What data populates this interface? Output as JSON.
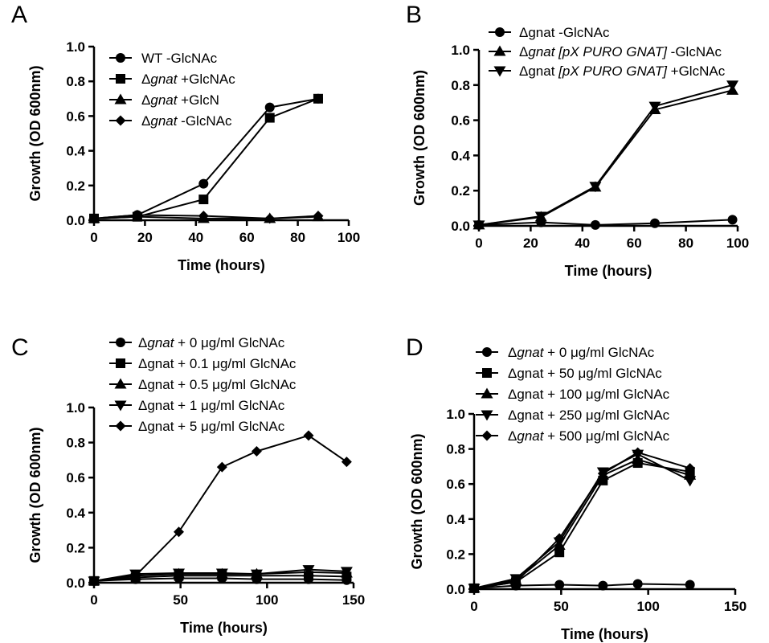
{
  "chart_data": [
    {
      "type": "line",
      "panel_label": "A",
      "xlabel": "Time (hours)",
      "ylabel": "Growth (OD 600nm)",
      "xlim": [
        0,
        100
      ],
      "ylim": [
        0,
        1.0
      ],
      "xticks": [
        "0",
        "20",
        "40",
        "60",
        "80",
        "100"
      ],
      "yticks": [
        "0.0",
        "0.2",
        "0.4",
        "0.6",
        "0.8",
        "1.0"
      ],
      "grid": false,
      "legend_position": "top-center",
      "series": [
        {
          "name": "WT -GlcNAc",
          "legend_parts": [
            {
              "t": "WT -GlcNAc",
              "i": false
            }
          ],
          "marker": "circle",
          "x": [
            0,
            17,
            43,
            69,
            88
          ],
          "values": [
            0.01,
            0.03,
            0.21,
            0.65,
            0.7
          ]
        },
        {
          "name": "Δgnat +GlcNAc",
          "legend_parts": [
            {
              "t": "Δ",
              "i": false
            },
            {
              "t": "gnat",
              "i": true
            },
            {
              "t": " +GlcNAc",
              "i": false
            }
          ],
          "marker": "square",
          "x": [
            0,
            17,
            43,
            69,
            88
          ],
          "values": [
            0.01,
            0.02,
            0.12,
            0.59,
            0.7
          ]
        },
        {
          "name": "Δgnat +GlcN",
          "legend_parts": [
            {
              "t": "Δ",
              "i": false
            },
            {
              "t": "gnat",
              "i": true
            },
            {
              "t": " +GlcN",
              "i": false
            }
          ],
          "marker": "triangle-up",
          "x": [
            0,
            17,
            43,
            69,
            88
          ],
          "values": [
            0.01,
            0.02,
            0.01,
            0.01,
            0.02
          ]
        },
        {
          "name": "Δgnat -GlcNAc",
          "legend_parts": [
            {
              "t": "Δ",
              "i": false
            },
            {
              "t": "gnat",
              "i": true
            },
            {
              "t": " -GlcNAc",
              "i": false
            }
          ],
          "marker": "diamond",
          "x": [
            0,
            17,
            43,
            69,
            88
          ],
          "values": [
            0.01,
            0.03,
            0.025,
            0.01,
            0.025
          ]
        }
      ]
    },
    {
      "type": "line",
      "panel_label": "B",
      "xlabel": "Time (hours)",
      "ylabel": "Growth (OD 600nm)",
      "xlim": [
        0,
        100
      ],
      "ylim": [
        0,
        1.0
      ],
      "xticks": [
        "0",
        "20",
        "40",
        "60",
        "80",
        "100"
      ],
      "yticks": [
        "0.0",
        "0.2",
        "0.4",
        "0.6",
        "0.8",
        "1.0"
      ],
      "grid": false,
      "legend_position": "top-center",
      "series": [
        {
          "name": "Δgnat -GlcNAc",
          "legend_parts": [
            {
              "t": "Δgnat -GlcNAc",
              "i": false
            }
          ],
          "marker": "circle",
          "x": [
            0,
            24,
            45,
            68,
            98
          ],
          "values": [
            0.005,
            0.02,
            0.005,
            0.015,
            0.035
          ]
        },
        {
          "name": "Δgnat [pX PURO GNAT] -GlcNAc",
          "legend_parts": [
            {
              "t": "Δ",
              "i": false
            },
            {
              "t": "gnat [pX PURO GNAT]",
              "i": true
            },
            {
              "t": " -GlcNAc",
              "i": false
            }
          ],
          "marker": "triangle-up",
          "x": [
            0,
            24,
            45,
            68,
            98
          ],
          "values": [
            0.005,
            0.05,
            0.22,
            0.66,
            0.77
          ]
        },
        {
          "name": "Δgnat [pX PURO GNAT] +GlcNAc",
          "legend_parts": [
            {
              "t": "Δgnat ",
              "i": false
            },
            {
              "t": "[pX PURO GNAT]",
              "i": true
            },
            {
              "t": " +GlcNAc",
              "i": false
            }
          ],
          "marker": "triangle-down",
          "x": [
            0,
            24,
            45,
            68,
            98
          ],
          "values": [
            0.005,
            0.055,
            0.225,
            0.68,
            0.8
          ]
        }
      ]
    },
    {
      "type": "line",
      "panel_label": "C",
      "xlabel": "Time (hours)",
      "ylabel": "Growth (OD 600nm)",
      "xlim": [
        0,
        150
      ],
      "ylim": [
        0,
        1.0
      ],
      "xticks": [
        "0",
        "50",
        "100",
        "150"
      ],
      "yticks": [
        "0.0",
        "0.2",
        "0.4",
        "0.6",
        "0.8",
        "1.0"
      ],
      "grid": false,
      "legend_position": "top-center",
      "series": [
        {
          "name": "Δgnat + 0 μg/ml GlcNAc",
          "legend_parts": [
            {
              "t": "Δ",
              "i": false
            },
            {
              "t": "gnat",
              "i": true
            },
            {
              "t": " + 0 μg/ml GlcNAc",
              "i": false
            }
          ],
          "marker": "circle",
          "x": [
            0,
            24,
            49,
            74,
            94,
            124,
            146
          ],
          "values": [
            0.01,
            0.02,
            0.025,
            0.025,
            0.02,
            0.02,
            0.015
          ]
        },
        {
          "name": "Δgnat + 0.1 μg/ml GlcNAc",
          "legend_parts": [
            {
              "t": "Δgnat + 0.1 μg/ml GlcNAc",
              "i": false
            }
          ],
          "marker": "square",
          "x": [
            0,
            24,
            49,
            74,
            94,
            124,
            146
          ],
          "values": [
            0.01,
            0.03,
            0.04,
            0.04,
            0.04,
            0.04,
            0.035
          ]
        },
        {
          "name": "Δgnat + 0.5 μg/ml GlcNAc",
          "legend_parts": [
            {
              "t": "Δgnat + 0.5 μg/ml GlcNAc",
              "i": false
            }
          ],
          "marker": "triangle-up",
          "x": [
            0,
            24,
            49,
            74,
            94,
            124,
            146
          ],
          "values": [
            0.01,
            0.04,
            0.05,
            0.05,
            0.05,
            0.06,
            0.055
          ]
        },
        {
          "name": "Δgnat + 1 μg/ml GlcNAc",
          "legend_parts": [
            {
              "t": "Δgnat + 1 μg/ml GlcNAc",
              "i": false
            }
          ],
          "marker": "triangle-down",
          "x": [
            0,
            24,
            49,
            74,
            94,
            124,
            146
          ],
          "values": [
            0.01,
            0.05,
            0.055,
            0.055,
            0.05,
            0.075,
            0.065
          ]
        },
        {
          "name": "Δgnat + 5 μg/ml GlcNAc",
          "legend_parts": [
            {
              "t": "Δgnat + 5 μg/ml GlcNAc",
              "i": false
            }
          ],
          "marker": "diamond",
          "x": [
            0,
            24,
            49,
            74,
            94,
            124,
            146
          ],
          "values": [
            0.01,
            0.04,
            0.29,
            0.66,
            0.75,
            0.84,
            0.69
          ]
        }
      ]
    },
    {
      "type": "line",
      "panel_label": "D",
      "xlabel": "Time (hours)",
      "ylabel": "Growth (OD 600nm)",
      "xlim": [
        0,
        150
      ],
      "ylim": [
        0,
        1.0
      ],
      "xticks": [
        "0",
        "50",
        "100",
        "150"
      ],
      "yticks": [
        "0.0",
        "0.2",
        "0.4",
        "0.6",
        "0.8",
        "1.0"
      ],
      "grid": false,
      "legend_position": "top-center",
      "series": [
        {
          "name": "Δgnat + 0 μg/ml GlcNAc",
          "legend_parts": [
            {
              "t": "Δ",
              "i": false
            },
            {
              "t": "gnat",
              "i": true
            },
            {
              "t": " + 0 μg/ml GlcNAc",
              "i": false
            }
          ],
          "marker": "circle",
          "x": [
            0,
            24,
            49,
            74,
            94,
            124
          ],
          "values": [
            0.005,
            0.02,
            0.025,
            0.02,
            0.03,
            0.025
          ]
        },
        {
          "name": "Δgnat + 50 μg/ml GlcNAc",
          "legend_parts": [
            {
              "t": "Δgnat + 50 μg/ml GlcNAc",
              "i": false
            }
          ],
          "marker": "square",
          "x": [
            0,
            24,
            49,
            74,
            94,
            124
          ],
          "values": [
            0.005,
            0.04,
            0.21,
            0.62,
            0.72,
            0.67
          ]
        },
        {
          "name": "Δgnat + 100 μg/ml GlcNAc",
          "legend_parts": [
            {
              "t": "Δgnat + 100 μg/ml GlcNAc",
              "i": false
            }
          ],
          "marker": "triangle-up",
          "x": [
            0,
            24,
            49,
            74,
            94,
            124
          ],
          "values": [
            0.005,
            0.05,
            0.25,
            0.65,
            0.74,
            0.65
          ]
        },
        {
          "name": "Δgnat + 250 μg/ml GlcNAc",
          "legend_parts": [
            {
              "t": "Δgnat + 250 μg/ml GlcNAc",
              "i": false
            }
          ],
          "marker": "triangle-down",
          "x": [
            0,
            24,
            49,
            74,
            94,
            124
          ],
          "values": [
            0.005,
            0.06,
            0.27,
            0.67,
            0.77,
            0.62
          ]
        },
        {
          "name": "Δgnat + 500 μg/ml GlcNAc",
          "legend_parts": [
            {
              "t": "Δ",
              "i": false
            },
            {
              "t": "gnat",
              "i": true
            },
            {
              "t": " + 500 μg/ml GlcNAc",
              "i": false
            }
          ],
          "marker": "diamond",
          "x": [
            0,
            24,
            49,
            74,
            94,
            124
          ],
          "values": [
            0.005,
            0.04,
            0.29,
            0.66,
            0.78,
            0.69
          ]
        }
      ]
    }
  ]
}
